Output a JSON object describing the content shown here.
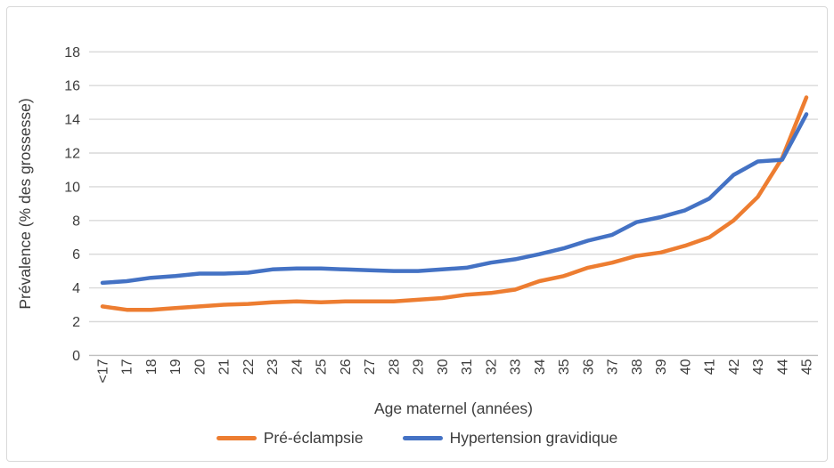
{
  "chart_data": {
    "type": "line",
    "title": "",
    "xlabel": "Age maternel (années)",
    "ylabel": "Prévalence (% des grossesse)",
    "ylim": [
      0,
      18
    ],
    "ytick_step": 2,
    "grid": true,
    "legend_position": "bottom",
    "x_label_rotation": -90,
    "gridline_color": "#d9d9d9",
    "axis_line_color": "#bfbfbf",
    "tick_label_color": "#3d3d3d",
    "categories": [
      "<17",
      "17",
      "18",
      "19",
      "20",
      "21",
      "22",
      "23",
      "24",
      "25",
      "26",
      "27",
      "28",
      "29",
      "30",
      "31",
      "32",
      "33",
      "34",
      "35",
      "36",
      "37",
      "38",
      "39",
      "40",
      "41",
      "42",
      "43",
      "44",
      "45"
    ],
    "series": [
      {
        "name": "Pré-éclampsie",
        "color": "#ED7D31",
        "values": [
          2.9,
          2.7,
          2.7,
          2.8,
          2.9,
          3.0,
          3.05,
          3.15,
          3.2,
          3.15,
          3.2,
          3.2,
          3.2,
          3.3,
          3.4,
          3.6,
          3.7,
          3.9,
          4.4,
          4.7,
          5.2,
          5.5,
          5.9,
          6.1,
          6.5,
          7.0,
          8.0,
          9.4,
          11.7,
          15.3
        ]
      },
      {
        "name": "Hypertension gravidique",
        "color": "#4472C4",
        "values": [
          4.3,
          4.4,
          4.6,
          4.7,
          4.85,
          4.85,
          4.9,
          5.1,
          5.15,
          5.15,
          5.1,
          5.05,
          5.0,
          5.0,
          5.1,
          5.2,
          5.5,
          5.7,
          6.0,
          6.35,
          6.8,
          7.15,
          7.9,
          8.2,
          8.6,
          9.3,
          10.7,
          11.5,
          11.6,
          14.3
        ]
      }
    ]
  }
}
